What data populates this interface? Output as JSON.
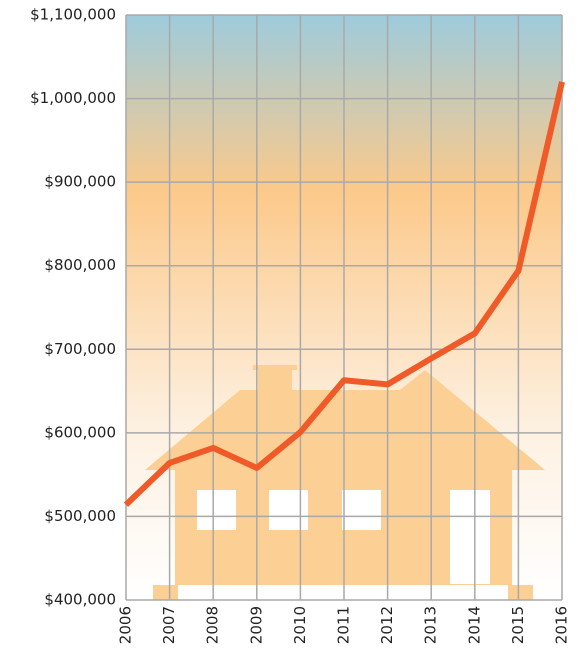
{
  "chart_data": {
    "type": "line",
    "x": [
      2006,
      2007,
      2008,
      2009,
      2010,
      2011,
      2012,
      2013,
      2014,
      2015,
      2016
    ],
    "series": [
      {
        "color": "#f05a28",
        "values": [
          514000,
          564000,
          582000,
          558000,
          601000,
          663000,
          658000,
          689000,
          719000,
          794000,
          1020000
        ]
      }
    ],
    "xlim": [
      2006,
      2016
    ],
    "xticks": [
      2006,
      2007,
      2008,
      2009,
      2010,
      2011,
      2012,
      2013,
      2014,
      2015,
      2016
    ],
    "ylim": [
      400000,
      1100000
    ],
    "yticks": [
      {
        "value": 400000,
        "label": "$400,000"
      },
      {
        "value": 500000,
        "label": "$500,000"
      },
      {
        "value": 600000,
        "label": "$600,000"
      },
      {
        "value": 700000,
        "label": "$700,000"
      },
      {
        "value": 800000,
        "label": "$800,000"
      },
      {
        "value": 900000,
        "label": "$900,000"
      },
      {
        "value": 1000000,
        "label": "$1,000,000"
      },
      {
        "value": 1100000,
        "label": "$1,100,000"
      }
    ],
    "grid": true
  }
}
